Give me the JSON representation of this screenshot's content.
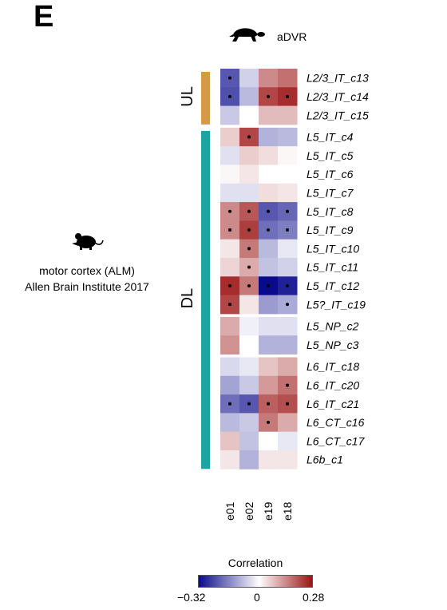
{
  "panel_letter": "E",
  "species_label": "aDVR",
  "reference": {
    "region": "motor cortex (ALM)",
    "source": "Allen Brain Institute 2017"
  },
  "colors": {
    "negative": "#0a0a8c",
    "zero": "#ffffff",
    "positive": "#9b1414",
    "ul_bar": "#d49a44",
    "dl_bar": "#1aa6a3"
  },
  "chart_data": {
    "type": "heatmap",
    "columns": [
      "e01",
      "e02",
      "e19",
      "e18"
    ],
    "row_groups": [
      {
        "label": "UL",
        "rows": [
          "L2/3_IT_c13",
          "L2/3_IT_c14",
          "L2/3_IT_c15"
        ]
      },
      {
        "label": "DL",
        "rows": [
          "L5_IT_c4",
          "L5_IT_c5",
          "L5_IT_c6",
          "L5_IT_c7",
          "L5_IT_c8",
          "L5_IT_c9",
          "L5_IT_c10",
          "L5_IT_c11",
          "L5_IT_c12",
          "L5?_IT_c19",
          "L5_NP_c2",
          "L5_NP_c3",
          "L6_IT_c18",
          "L6_IT_c20",
          "L6_IT_c21",
          "L6_CT_c16",
          "L6_CT_c17",
          "L6b_c1"
        ]
      }
    ],
    "row_blocks": [
      [
        "L2/3_IT_c13",
        "L2/3_IT_c14",
        "L2/3_IT_c15"
      ],
      [
        "L5_IT_c4",
        "L5_IT_c5",
        "L5_IT_c6",
        "L5_IT_c7",
        "L5_IT_c8",
        "L5_IT_c9",
        "L5_IT_c10",
        "L5_IT_c11",
        "L5_IT_c12",
        "L5?_IT_c19"
      ],
      [
        "L5_NP_c2",
        "L5_NP_c3"
      ],
      [
        "L6_IT_c18",
        "L6_IT_c20",
        "L6_IT_c21",
        "L6_CT_c16",
        "L6_CT_c17",
        "L6b_c1"
      ]
    ],
    "values": [
      [
        -0.22,
        -0.06,
        0.14,
        0.17
      ],
      [
        -0.23,
        -0.09,
        0.22,
        0.25
      ],
      [
        -0.07,
        0.0,
        0.08,
        0.08
      ],
      [
        0.06,
        0.22,
        -0.1,
        -0.09
      ],
      [
        -0.04,
        0.06,
        0.04,
        0.01
      ],
      [
        0.01,
        0.03,
        0.0,
        0.0
      ],
      [
        -0.04,
        -0.04,
        0.04,
        0.03
      ],
      [
        0.14,
        0.2,
        -0.22,
        -0.2
      ],
      [
        0.14,
        0.23,
        -0.19,
        -0.17
      ],
      [
        0.03,
        0.16,
        -0.09,
        -0.03
      ],
      [
        0.05,
        0.1,
        -0.08,
        -0.06
      ],
      [
        0.25,
        0.16,
        -0.32,
        -0.29
      ],
      [
        0.22,
        0.03,
        -0.13,
        -0.11
      ],
      [
        0.1,
        -0.02,
        -0.04,
        -0.04
      ],
      [
        0.13,
        0.0,
        -0.1,
        -0.1
      ],
      [
        -0.05,
        -0.03,
        0.07,
        0.1
      ],
      [
        -0.12,
        -0.07,
        0.12,
        0.17
      ],
      [
        -0.19,
        -0.22,
        0.19,
        0.21
      ],
      [
        -0.09,
        -0.07,
        0.16,
        0.1
      ],
      [
        0.07,
        -0.08,
        0.0,
        -0.03
      ],
      [
        0.03,
        -0.1,
        0.03,
        0.03
      ]
    ],
    "significant": [
      [
        true,
        false,
        false,
        false
      ],
      [
        true,
        false,
        true,
        true
      ],
      [
        false,
        false,
        false,
        false
      ],
      [
        false,
        true,
        false,
        false
      ],
      [
        false,
        false,
        false,
        false
      ],
      [
        false,
        false,
        false,
        false
      ],
      [
        false,
        false,
        false,
        false
      ],
      [
        true,
        true,
        true,
        true
      ],
      [
        true,
        true,
        true,
        true
      ],
      [
        false,
        true,
        false,
        false
      ],
      [
        false,
        true,
        false,
        false
      ],
      [
        true,
        true,
        true,
        true
      ],
      [
        true,
        false,
        false,
        true
      ],
      [
        false,
        false,
        false,
        false
      ],
      [
        false,
        false,
        false,
        false
      ],
      [
        false,
        false,
        false,
        false
      ],
      [
        false,
        false,
        false,
        true
      ],
      [
        true,
        true,
        true,
        true
      ],
      [
        false,
        false,
        true,
        false
      ],
      [
        false,
        false,
        false,
        false
      ],
      [
        false,
        false,
        false,
        false
      ]
    ],
    "colorbar": {
      "title": "Correlation",
      "min": -0.32,
      "max": 0.28,
      "min_label": "−0.32",
      "mid_label": "0",
      "max_label": "0.28"
    }
  }
}
